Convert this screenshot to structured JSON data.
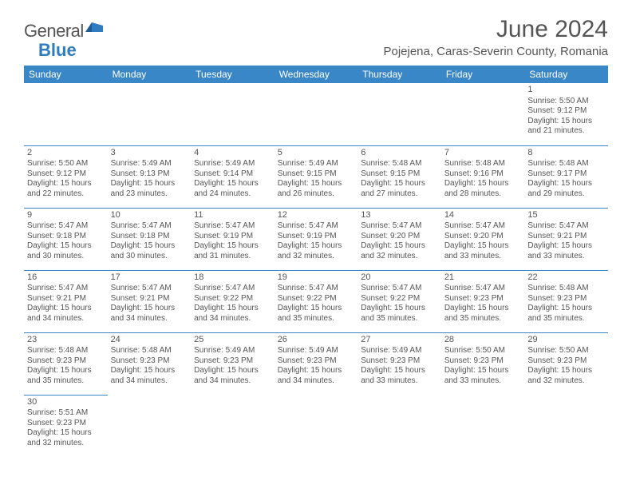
{
  "logo": {
    "general": "General",
    "blue": "Blue"
  },
  "title": "June 2024",
  "subtitle": "Pojejena, Caras-Severin County, Romania",
  "colors": {
    "header_bg": "#3a87c8",
    "header_text": "#ffffff",
    "border": "#3a87c8",
    "text": "#555555",
    "logo_blue": "#2f7cc0"
  },
  "weekdays": [
    "Sunday",
    "Monday",
    "Tuesday",
    "Wednesday",
    "Thursday",
    "Friday",
    "Saturday"
  ],
  "weeks": [
    [
      null,
      null,
      null,
      null,
      null,
      null,
      {
        "n": "1",
        "sr": "Sunrise: 5:50 AM",
        "ss": "Sunset: 9:12 PM",
        "d1": "Daylight: 15 hours",
        "d2": "and 21 minutes."
      }
    ],
    [
      {
        "n": "2",
        "sr": "Sunrise: 5:50 AM",
        "ss": "Sunset: 9:12 PM",
        "d1": "Daylight: 15 hours",
        "d2": "and 22 minutes."
      },
      {
        "n": "3",
        "sr": "Sunrise: 5:49 AM",
        "ss": "Sunset: 9:13 PM",
        "d1": "Daylight: 15 hours",
        "d2": "and 23 minutes."
      },
      {
        "n": "4",
        "sr": "Sunrise: 5:49 AM",
        "ss": "Sunset: 9:14 PM",
        "d1": "Daylight: 15 hours",
        "d2": "and 24 minutes."
      },
      {
        "n": "5",
        "sr": "Sunrise: 5:49 AM",
        "ss": "Sunset: 9:15 PM",
        "d1": "Daylight: 15 hours",
        "d2": "and 26 minutes."
      },
      {
        "n": "6",
        "sr": "Sunrise: 5:48 AM",
        "ss": "Sunset: 9:15 PM",
        "d1": "Daylight: 15 hours",
        "d2": "and 27 minutes."
      },
      {
        "n": "7",
        "sr": "Sunrise: 5:48 AM",
        "ss": "Sunset: 9:16 PM",
        "d1": "Daylight: 15 hours",
        "d2": "and 28 minutes."
      },
      {
        "n": "8",
        "sr": "Sunrise: 5:48 AM",
        "ss": "Sunset: 9:17 PM",
        "d1": "Daylight: 15 hours",
        "d2": "and 29 minutes."
      }
    ],
    [
      {
        "n": "9",
        "sr": "Sunrise: 5:47 AM",
        "ss": "Sunset: 9:18 PM",
        "d1": "Daylight: 15 hours",
        "d2": "and 30 minutes."
      },
      {
        "n": "10",
        "sr": "Sunrise: 5:47 AM",
        "ss": "Sunset: 9:18 PM",
        "d1": "Daylight: 15 hours",
        "d2": "and 30 minutes."
      },
      {
        "n": "11",
        "sr": "Sunrise: 5:47 AM",
        "ss": "Sunset: 9:19 PM",
        "d1": "Daylight: 15 hours",
        "d2": "and 31 minutes."
      },
      {
        "n": "12",
        "sr": "Sunrise: 5:47 AM",
        "ss": "Sunset: 9:19 PM",
        "d1": "Daylight: 15 hours",
        "d2": "and 32 minutes."
      },
      {
        "n": "13",
        "sr": "Sunrise: 5:47 AM",
        "ss": "Sunset: 9:20 PM",
        "d1": "Daylight: 15 hours",
        "d2": "and 32 minutes."
      },
      {
        "n": "14",
        "sr": "Sunrise: 5:47 AM",
        "ss": "Sunset: 9:20 PM",
        "d1": "Daylight: 15 hours",
        "d2": "and 33 minutes."
      },
      {
        "n": "15",
        "sr": "Sunrise: 5:47 AM",
        "ss": "Sunset: 9:21 PM",
        "d1": "Daylight: 15 hours",
        "d2": "and 33 minutes."
      }
    ],
    [
      {
        "n": "16",
        "sr": "Sunrise: 5:47 AM",
        "ss": "Sunset: 9:21 PM",
        "d1": "Daylight: 15 hours",
        "d2": "and 34 minutes."
      },
      {
        "n": "17",
        "sr": "Sunrise: 5:47 AM",
        "ss": "Sunset: 9:21 PM",
        "d1": "Daylight: 15 hours",
        "d2": "and 34 minutes."
      },
      {
        "n": "18",
        "sr": "Sunrise: 5:47 AM",
        "ss": "Sunset: 9:22 PM",
        "d1": "Daylight: 15 hours",
        "d2": "and 34 minutes."
      },
      {
        "n": "19",
        "sr": "Sunrise: 5:47 AM",
        "ss": "Sunset: 9:22 PM",
        "d1": "Daylight: 15 hours",
        "d2": "and 35 minutes."
      },
      {
        "n": "20",
        "sr": "Sunrise: 5:47 AM",
        "ss": "Sunset: 9:22 PM",
        "d1": "Daylight: 15 hours",
        "d2": "and 35 minutes."
      },
      {
        "n": "21",
        "sr": "Sunrise: 5:47 AM",
        "ss": "Sunset: 9:23 PM",
        "d1": "Daylight: 15 hours",
        "d2": "and 35 minutes."
      },
      {
        "n": "22",
        "sr": "Sunrise: 5:48 AM",
        "ss": "Sunset: 9:23 PM",
        "d1": "Daylight: 15 hours",
        "d2": "and 35 minutes."
      }
    ],
    [
      {
        "n": "23",
        "sr": "Sunrise: 5:48 AM",
        "ss": "Sunset: 9:23 PM",
        "d1": "Daylight: 15 hours",
        "d2": "and 35 minutes."
      },
      {
        "n": "24",
        "sr": "Sunrise: 5:48 AM",
        "ss": "Sunset: 9:23 PM",
        "d1": "Daylight: 15 hours",
        "d2": "and 34 minutes."
      },
      {
        "n": "25",
        "sr": "Sunrise: 5:49 AM",
        "ss": "Sunset: 9:23 PM",
        "d1": "Daylight: 15 hours",
        "d2": "and 34 minutes."
      },
      {
        "n": "26",
        "sr": "Sunrise: 5:49 AM",
        "ss": "Sunset: 9:23 PM",
        "d1": "Daylight: 15 hours",
        "d2": "and 34 minutes."
      },
      {
        "n": "27",
        "sr": "Sunrise: 5:49 AM",
        "ss": "Sunset: 9:23 PM",
        "d1": "Daylight: 15 hours",
        "d2": "and 33 minutes."
      },
      {
        "n": "28",
        "sr": "Sunrise: 5:50 AM",
        "ss": "Sunset: 9:23 PM",
        "d1": "Daylight: 15 hours",
        "d2": "and 33 minutes."
      },
      {
        "n": "29",
        "sr": "Sunrise: 5:50 AM",
        "ss": "Sunset: 9:23 PM",
        "d1": "Daylight: 15 hours",
        "d2": "and 32 minutes."
      }
    ],
    [
      {
        "n": "30",
        "sr": "Sunrise: 5:51 AM",
        "ss": "Sunset: 9:23 PM",
        "d1": "Daylight: 15 hours",
        "d2": "and 32 minutes."
      },
      null,
      null,
      null,
      null,
      null,
      null
    ]
  ]
}
